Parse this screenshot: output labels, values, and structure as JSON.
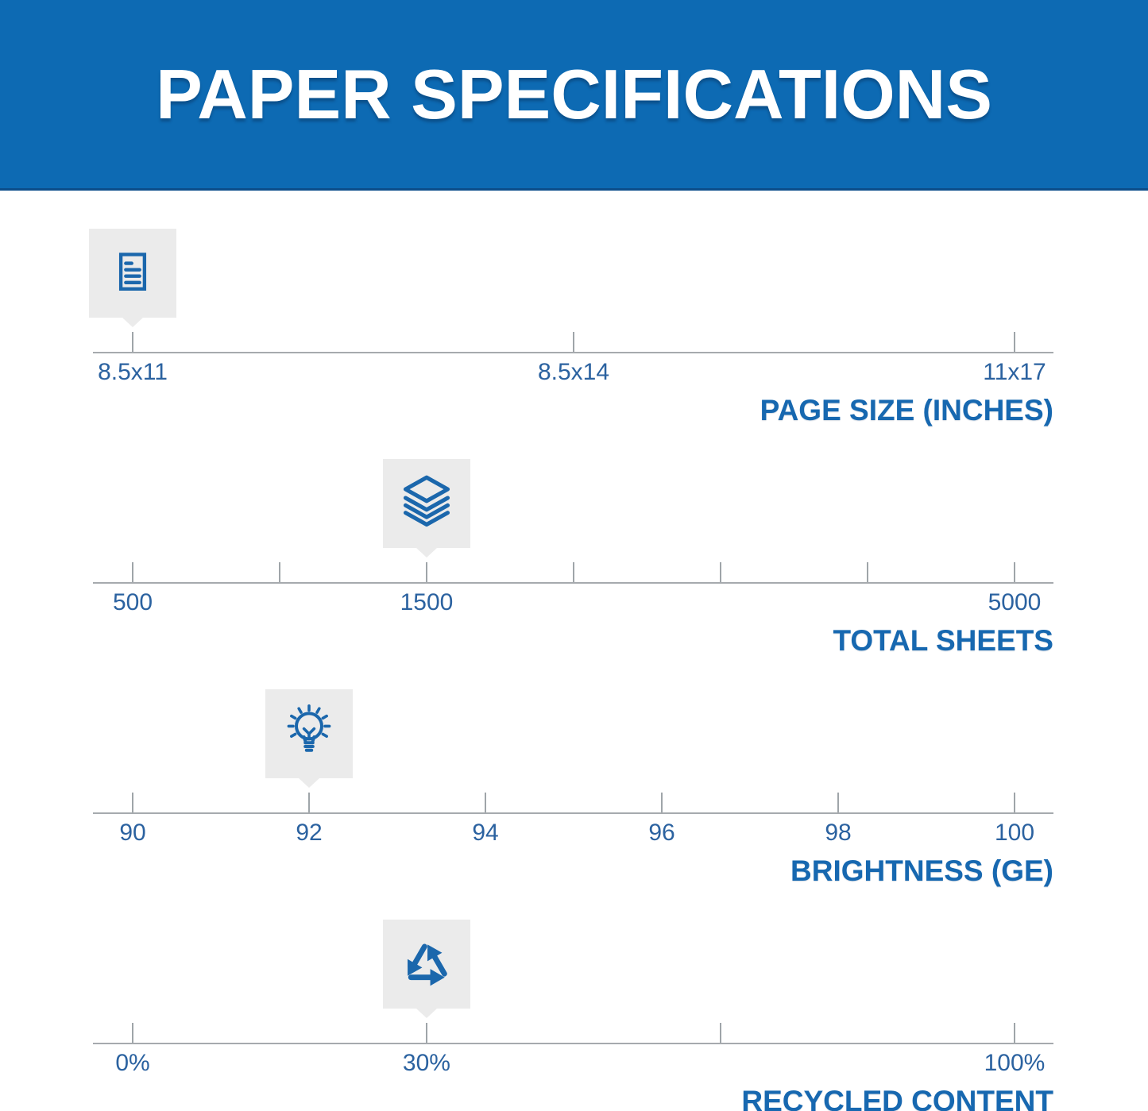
{
  "header": {
    "title": "PAPER SPECIFICATIONS"
  },
  "colors": {
    "banner_blue": "#0d6ab3",
    "banner_edge_dark": "#0c4d8a",
    "icon_blue": "#1b67ac",
    "scale_title_blue": "#1768b0",
    "tick_label_blue": "#2b62a0",
    "line_gray": "#a6aaae",
    "marker_box_gray": "#ebebeb"
  },
  "chart_data": {
    "type": "linear-scale-infographic",
    "scales": [
      {
        "title": "PAGE SIZE (INCHES)",
        "marker": {
          "icon": "document-icon",
          "value": "8.5x11",
          "pos": 0
        },
        "ticks": [
          {
            "label": "8.5x11",
            "pos": 0
          },
          {
            "label": "8.5x14",
            "pos": 0.5
          },
          {
            "label": "11x17",
            "pos": 1
          }
        ]
      },
      {
        "title": "TOTAL SHEETS",
        "marker": {
          "icon": "paper-stack-icon",
          "value": "1500",
          "pos": 0.3333
        },
        "ticks": [
          {
            "label": "500",
            "pos": 0
          },
          {
            "label": "",
            "pos": 0.1667
          },
          {
            "label": "1500",
            "pos": 0.3333
          },
          {
            "label": "",
            "pos": 0.5
          },
          {
            "label": "",
            "pos": 0.6667
          },
          {
            "label": "",
            "pos": 0.8333
          },
          {
            "label": "5000",
            "pos": 1
          }
        ]
      },
      {
        "title": "BRIGHTNESS (GE)",
        "marker": {
          "icon": "lightbulb-icon",
          "value": "92",
          "pos": 0.2
        },
        "ticks": [
          {
            "label": "90",
            "pos": 0
          },
          {
            "label": "92",
            "pos": 0.2
          },
          {
            "label": "94",
            "pos": 0.4
          },
          {
            "label": "96",
            "pos": 0.6
          },
          {
            "label": "98",
            "pos": 0.8
          },
          {
            "label": "100",
            "pos": 1
          }
        ]
      },
      {
        "title": "RECYCLED CONTENT",
        "marker": {
          "icon": "recycle-icon",
          "value": "30%",
          "pos": 0.3333
        },
        "ticks": [
          {
            "label": "0%",
            "pos": 0
          },
          {
            "label": "30%",
            "pos": 0.3333
          },
          {
            "label": "",
            "pos": 0.6667
          },
          {
            "label": "100%",
            "pos": 1
          }
        ]
      }
    ]
  }
}
